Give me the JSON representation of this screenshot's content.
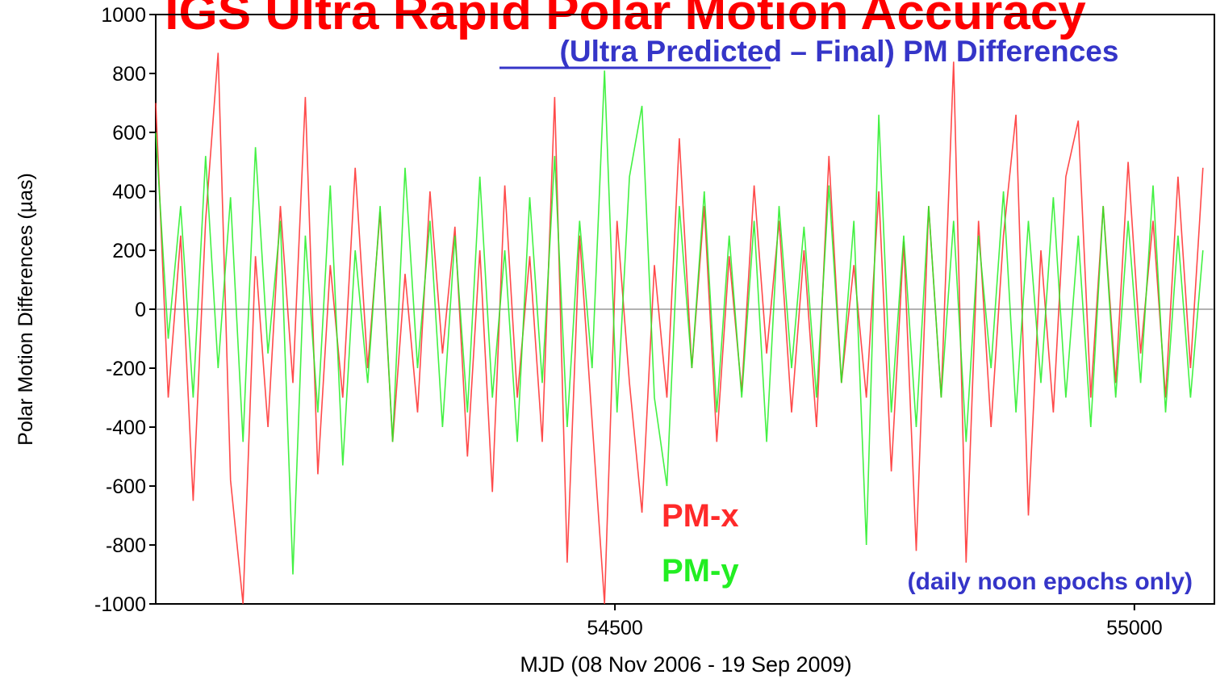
{
  "chart_data": {
    "type": "line",
    "title": "IGS Ultra Rapid Polar Motion Accuracy",
    "subtitle": "(Ultra Predicted – Final) PM Differences",
    "note": "(daily noon epochs only)",
    "x_label": "MJD (08 Nov 2006 - 19 Sep 2009)",
    "y_label": "Polar Motion Differences (µas)",
    "xlim": [
      54058,
      55077
    ],
    "ylim": [
      -1000,
      1000
    ],
    "xticks": [
      54500,
      55000
    ],
    "yticks": [
      -1000,
      -800,
      -600,
      -400,
      -200,
      0,
      200,
      400,
      600,
      800,
      1000
    ],
    "x": [
      54058,
      54070,
      54082,
      54094,
      54106,
      54118,
      54130,
      54142,
      54154,
      54166,
      54178,
      54190,
      54202,
      54214,
      54226,
      54238,
      54250,
      54262,
      54274,
      54286,
      54298,
      54310,
      54322,
      54334,
      54346,
      54358,
      54370,
      54382,
      54394,
      54406,
      54418,
      54430,
      54442,
      54454,
      54466,
      54478,
      54490,
      54502,
      54514,
      54526,
      54538,
      54550,
      54562,
      54574,
      54586,
      54598,
      54610,
      54622,
      54634,
      54646,
      54658,
      54670,
      54682,
      54694,
      54706,
      54718,
      54730,
      54742,
      54754,
      54766,
      54778,
      54790,
      54802,
      54814,
      54826,
      54838,
      54850,
      54862,
      54874,
      54886,
      54898,
      54910,
      54922,
      54934,
      54946,
      54958,
      54970,
      54982,
      54994,
      55006,
      55018,
      55030,
      55042,
      55054,
      55066
    ],
    "series": [
      {
        "name": "PM-x",
        "color": "#ff2a2a",
        "values": [
          700,
          -300,
          250,
          -650,
          300,
          870,
          -580,
          -1000,
          180,
          -400,
          350,
          -250,
          720,
          -560,
          150,
          -300,
          480,
          -200,
          330,
          -450,
          120,
          -350,
          400,
          -150,
          280,
          -500,
          200,
          -620,
          420,
          -300,
          180,
          -450,
          720,
          -860,
          250,
          -380,
          -1000,
          300,
          -250,
          -690,
          150,
          -300,
          580,
          -200,
          350,
          -450,
          180,
          -280,
          420,
          -150,
          300,
          -350,
          200,
          -400,
          520,
          -250,
          150,
          -300,
          400,
          -550,
          230,
          -820,
          350,
          -300,
          840,
          -860,
          300,
          -400,
          250,
          660,
          -700,
          200,
          -350,
          450,
          640,
          -300,
          350,
          -250,
          500,
          -150,
          300,
          -300,
          450,
          -200,
          480
        ]
      },
      {
        "name": "PM-y",
        "color": "#22ee22",
        "values": [
          600,
          -100,
          350,
          -300,
          520,
          -200,
          380,
          -450,
          550,
          -150,
          300,
          -900,
          250,
          -350,
          420,
          -530,
          200,
          -250,
          350,
          -450,
          480,
          -200,
          300,
          -400,
          250,
          -350,
          450,
          -300,
          200,
          -450,
          380,
          -250,
          520,
          -400,
          300,
          -200,
          810,
          -350,
          450,
          690,
          -300,
          -600,
          350,
          -200,
          400,
          -350,
          250,
          -300,
          300,
          -450,
          350,
          -200,
          280,
          -300,
          420,
          -250,
          300,
          -800,
          660,
          -350,
          250,
          -400,
          350,
          -300,
          300,
          -450,
          250,
          -200,
          400,
          -350,
          300,
          -250,
          380,
          -300,
          250,
          -400,
          350,
          -300,
          300,
          -250,
          420,
          -350,
          250,
          -300,
          200
        ]
      }
    ],
    "zero_line": true
  }
}
